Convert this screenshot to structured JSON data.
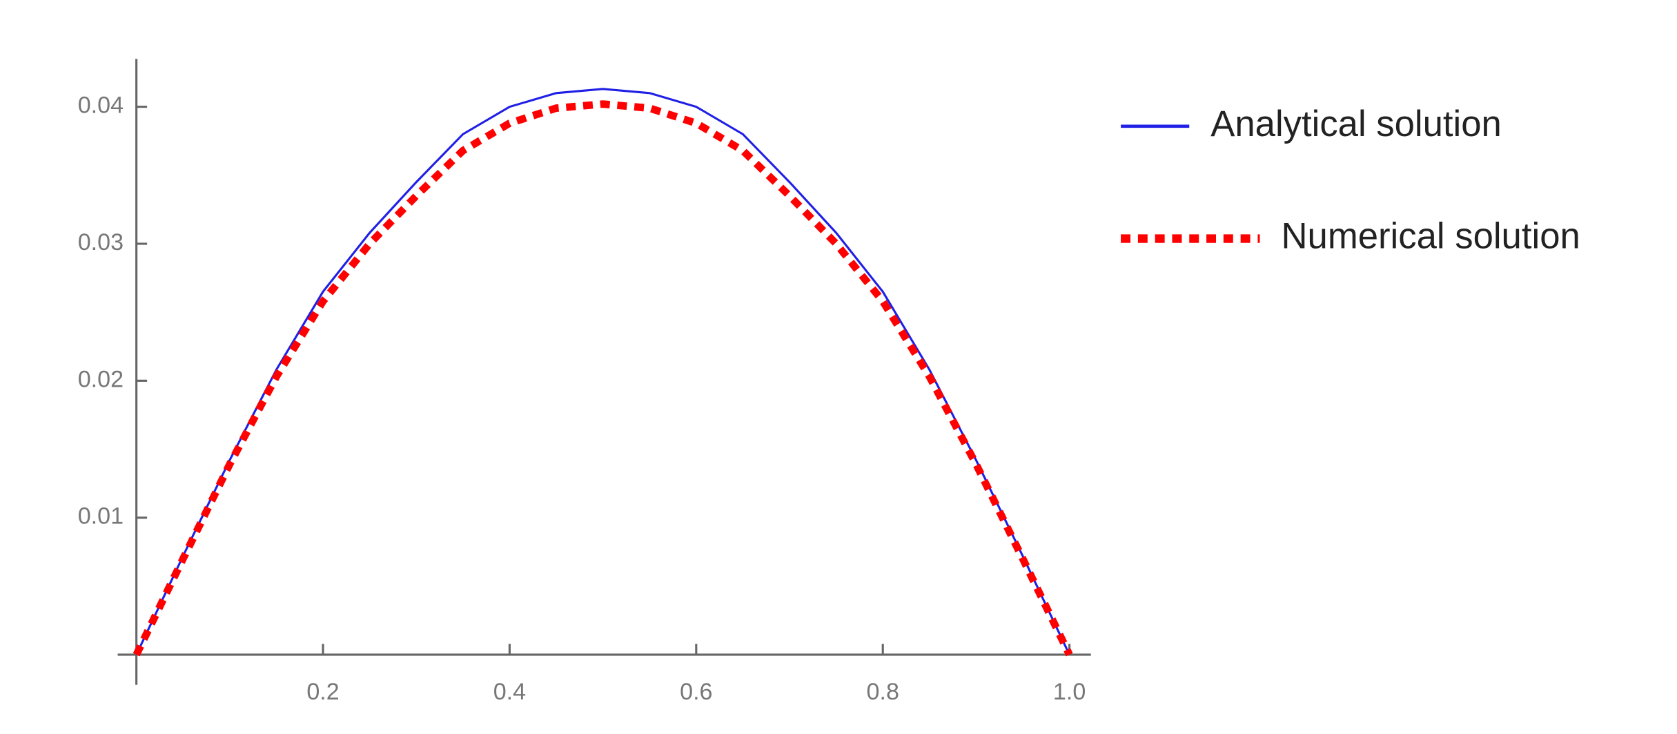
{
  "chart_data": {
    "type": "line",
    "x": [
      0,
      0.05,
      0.1,
      0.15,
      0.2,
      0.25,
      0.3,
      0.35,
      0.4,
      0.45,
      0.5,
      0.55,
      0.6,
      0.65,
      0.7,
      0.75,
      0.8,
      0.85,
      0.9,
      0.95,
      1.0
    ],
    "series": [
      {
        "name": "Analytical solution",
        "color": "#1f1fe6",
        "style": "solid",
        "values": [
          0,
          0.0072,
          0.0142,
          0.0208,
          0.0265,
          0.0308,
          0.0345,
          0.038,
          0.04,
          0.041,
          0.0413,
          0.041,
          0.04,
          0.038,
          0.0345,
          0.0308,
          0.0265,
          0.0208,
          0.0142,
          0.0072,
          0
        ]
      },
      {
        "name": "Numerical solution",
        "color": "#ff0000",
        "style": "dotted",
        "values": [
          0,
          0.007,
          0.0139,
          0.0203,
          0.0258,
          0.03,
          0.0335,
          0.0368,
          0.0388,
          0.0399,
          0.0402,
          0.0399,
          0.0388,
          0.0368,
          0.0335,
          0.03,
          0.0258,
          0.0203,
          0.0139,
          0.007,
          0
        ]
      }
    ],
    "xlim": [
      -0.02,
      1.023
    ],
    "ylim": [
      -0.0022,
      0.0435
    ],
    "xticks": [
      0.2,
      0.4,
      0.6,
      0.8,
      {
        "value": 1.0,
        "label": "1.0"
      }
    ],
    "yticks": [
      0.01,
      0.02,
      0.03,
      0.04
    ],
    "legend": "right"
  }
}
